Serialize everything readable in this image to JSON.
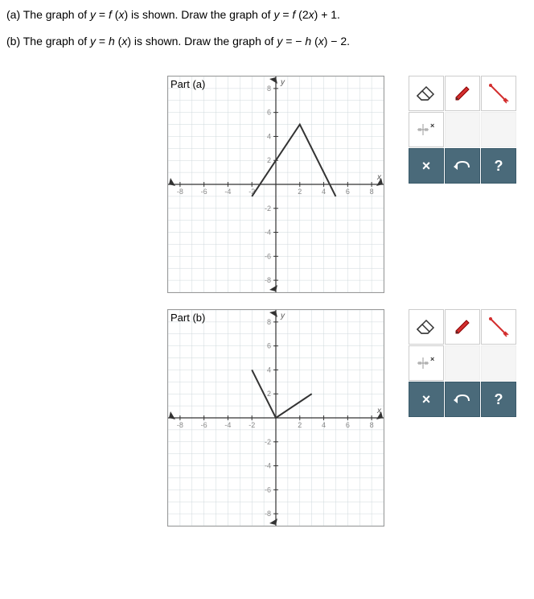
{
  "prompt_a": "(a) The graph of y = f (x) is shown. Draw the graph of y = f (2x) + 1.",
  "prompt_b": "(b) The graph of y = h (x) is shown. Draw the graph of y = − h (x) − 2.",
  "parts": {
    "a": {
      "label": "Part (a)",
      "graph": {
        "type": "line",
        "x_min": -9,
        "x_max": 9,
        "y_min": -9,
        "y_max": 9,
        "x_ticks": [
          -8,
          -6,
          -4,
          -2,
          2,
          4,
          6,
          8
        ],
        "y_ticks": [
          -8,
          -6,
          -4,
          -2,
          2,
          4,
          6,
          8
        ],
        "grid_color": "#cfd8dc",
        "major_grid_color": "#b0bec5",
        "axis_color": "#333333",
        "tick_label_color": "#888888",
        "tick_fontsize": 9,
        "axis_label_x": "x",
        "axis_label_y": "y",
        "curve": {
          "color": "#333333",
          "width": 2,
          "points": [
            [
              -2,
              -1
            ],
            [
              2,
              5
            ],
            [
              5,
              -1
            ]
          ]
        }
      }
    },
    "b": {
      "label": "Part (b)",
      "graph": {
        "type": "line",
        "x_min": -9,
        "x_max": 9,
        "y_min": -9,
        "y_max": 9,
        "x_ticks": [
          -8,
          -6,
          -4,
          -2,
          2,
          4,
          6,
          8
        ],
        "y_ticks": [
          -8,
          -6,
          -4,
          -2,
          2,
          4,
          6,
          8
        ],
        "grid_color": "#cfd8dc",
        "major_grid_color": "#b0bec5",
        "axis_color": "#333333",
        "tick_label_color": "#888888",
        "tick_fontsize": 9,
        "axis_label_x": "x",
        "axis_label_y": "y",
        "curve": {
          "color": "#333333",
          "width": 2,
          "points": [
            [
              -2,
              4
            ],
            [
              0,
              0
            ],
            [
              3,
              2
            ]
          ]
        }
      }
    }
  },
  "tools": {
    "eraser": "eraser-icon",
    "pen": "pen-icon",
    "line": "line-icon",
    "zoom": "zoom-icon",
    "close": "×",
    "undo": "undo-icon",
    "help": "?"
  },
  "colors": {
    "tool_dark_bg": "#4a6a7a",
    "tool_light_bg": "#ffffff",
    "tool_empty_bg": "#f5f5f5",
    "pen_red": "#d32f2f"
  }
}
